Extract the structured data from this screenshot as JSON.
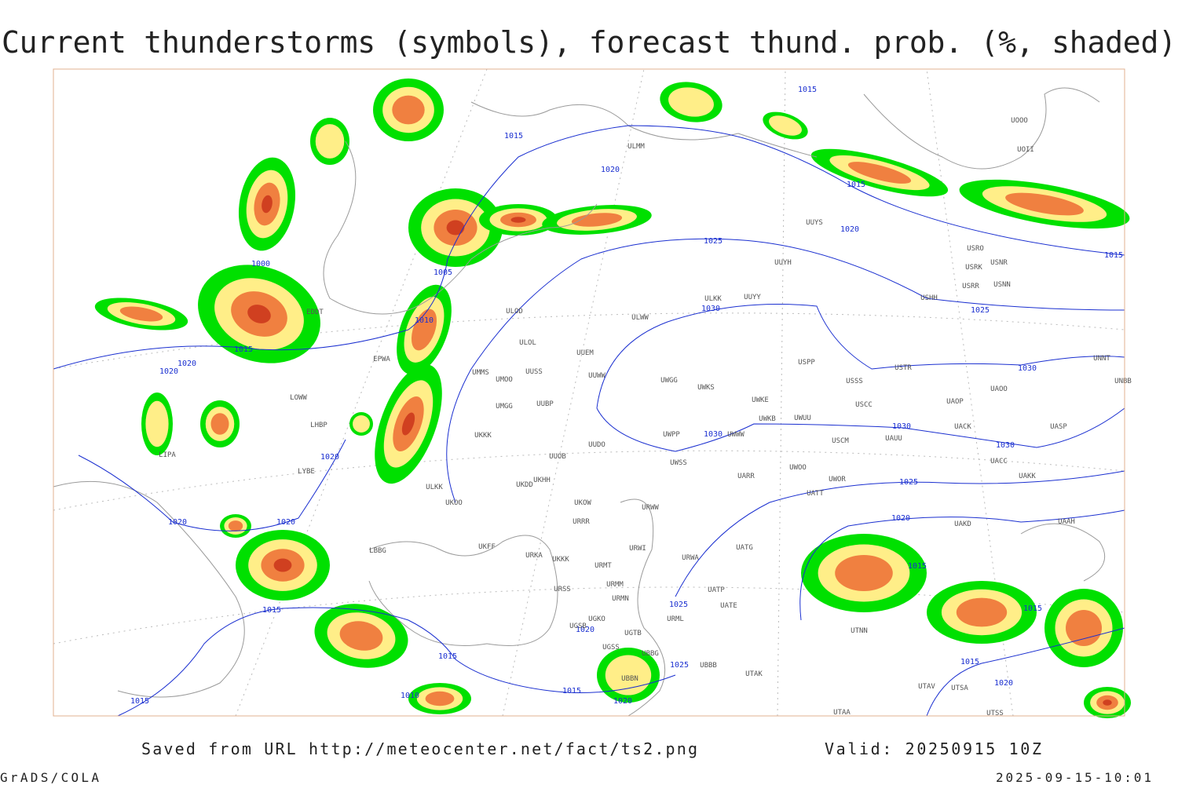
{
  "header": {
    "title": "Current thunderstorms (symbols), forecast thund. prob. (%, shaded)"
  },
  "footer": {
    "source": "Saved from URL http://meteocenter.net/fact/ts2.png",
    "valid": "Valid: 20250915 10Z",
    "software": "GrADS/COLA",
    "timestamp": "2025-09-15-10:01"
  },
  "map": {
    "isobar_labels": [
      1015,
      1015,
      1020,
      1015,
      1020,
      1025,
      1015,
      1000,
      1005,
      1010,
      1015,
      1020,
      1020,
      1030,
      1025,
      1030,
      1030,
      1030,
      1030,
      1025,
      1020,
      1020,
      1020,
      1020,
      1015,
      1015,
      1015,
      1025,
      1020,
      1015,
      1025,
      1015,
      1020,
      1015,
      1020,
      1010,
      1015
    ],
    "stations": [
      "ULMM",
      "UUYS",
      "UUYH",
      "ULKK",
      "UUYY",
      "ULWW",
      "ULOD",
      "ULOL",
      "UUEM",
      "UUWW",
      "UMMS",
      "UMOO",
      "UUSS",
      "UWGG",
      "UWKS",
      "USPP",
      "USSS",
      "USTR",
      "USCC",
      "UWKE",
      "UWKB",
      "UWUU",
      "UMGG",
      "UUBP",
      "UKKK",
      "UWPP",
      "UWWW",
      "USCM",
      "UAUU",
      "UUDO",
      "UUOB",
      "UWSS",
      "UKHH",
      "UKDD",
      "UARR",
      "UWOO",
      "UWOR",
      "UATT",
      "UKOO",
      "ULKK",
      "UKOW",
      "URWW",
      "URRR",
      "UAKD",
      "UAAH",
      "UKFF",
      "UATG",
      "URWI",
      "URKA",
      "UKKK",
      "URWA",
      "URMT",
      "URMM",
      "URSS",
      "UATP",
      "URMN",
      "UATE",
      "UGKO",
      "URML",
      "UGSB",
      "UGTB",
      "UGSS",
      "UBBG",
      "UBBB",
      "UBBN",
      "UTAK",
      "UTNN",
      "UTAV",
      "UTSA",
      "UTAA",
      "UTSS",
      "USRO",
      "USRK",
      "USNR",
      "USRR",
      "USNN",
      "USHH",
      "UAOO",
      "UAOP",
      "UACK",
      "UASP",
      "UACC",
      "UAKK",
      "UNNT",
      "UNBB",
      "UOOO",
      "UOII",
      "EDDT",
      "EPWA",
      "LOWW",
      "LHBP",
      "LIPA",
      "LYBE",
      "LBBG"
    ]
  }
}
